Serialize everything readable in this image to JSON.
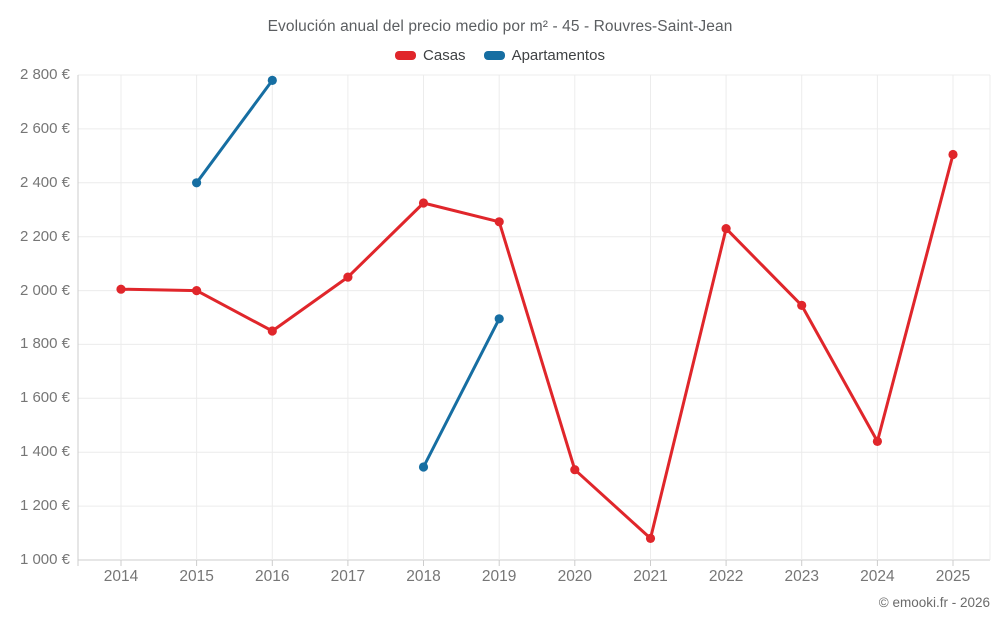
{
  "title": "Evolución anual del precio medio por m² - 45 - Rouvres-Saint-Jean",
  "footer": "© emooki.fr - 2026",
  "legend": [
    {
      "label": "Casas",
      "color": "#e0262b"
    },
    {
      "label": "Apartamentos",
      "color": "#166ea2"
    }
  ],
  "colors": {
    "casas": "#e0262b",
    "apartamentos": "#166ea2",
    "gridline": "#ececec",
    "axis_line": "#cccccc",
    "tick_text": "#767676",
    "title_text": "#5b5e61"
  },
  "chart_data": {
    "type": "line",
    "title": "Evolución anual del precio medio por m² - 45 - Rouvres-Saint-Jean",
    "x": [
      "2014",
      "2015",
      "2016",
      "2017",
      "2018",
      "2019",
      "2020",
      "2021",
      "2022",
      "2023",
      "2024",
      "2025"
    ],
    "series": [
      {
        "name": "Casas",
        "color": "#e0262b",
        "values": [
          2005,
          2000,
          1850,
          2050,
          2325,
          2255,
          1335,
          1080,
          2230,
          1945,
          1440,
          2505
        ]
      },
      {
        "name": "Apartamentos",
        "color": "#166ea2",
        "values": [
          null,
          2400,
          2780,
          null,
          1345,
          1895,
          null,
          null,
          null,
          null,
          null,
          null
        ]
      }
    ],
    "ylim": [
      1000,
      2800
    ],
    "ytick_values": [
      2800,
      2600,
      2400,
      2200,
      2000,
      1800,
      1600,
      1400,
      1200,
      1000
    ],
    "ytick_labels": [
      "2 800 €",
      "2 600 €",
      "2 400 €",
      "2 200 €",
      "2 000 €",
      "1 800 €",
      "1 600 €",
      "1 400 €",
      "1 200 €",
      "1 000 €"
    ],
    "ylabel": "",
    "xlabel": "",
    "grid": true,
    "legend_position": "top-center",
    "currency": "€"
  }
}
